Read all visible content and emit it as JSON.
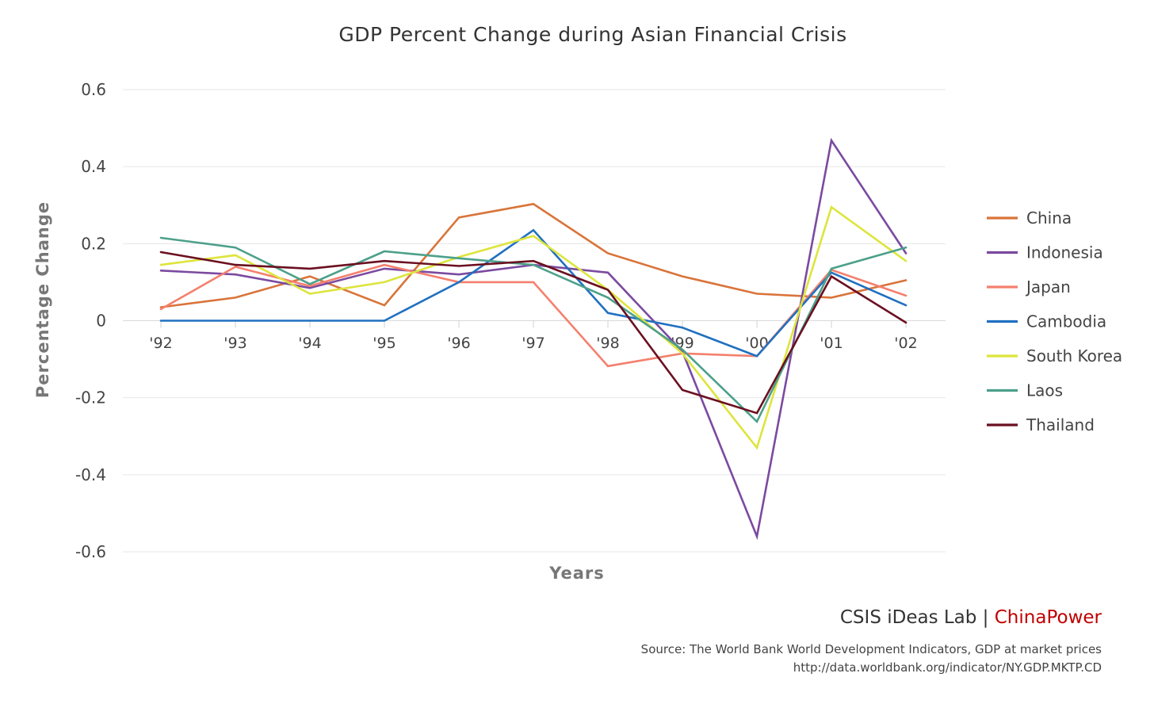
{
  "chart_data": {
    "type": "line",
    "title": "GDP Percent Change during Asian Financial Crisis",
    "xlabel": "Years",
    "ylabel": "Percentage Change",
    "ylim": [
      -0.6,
      0.6
    ],
    "yticks": [
      0.6,
      0.4,
      0.2,
      0,
      -0.2,
      -0.4,
      -0.6
    ],
    "ytick_labels": [
      "0.6",
      "0.4",
      "0.2",
      "0",
      "-0.2",
      "-0.4",
      "-0.6"
    ],
    "categories": [
      "'92",
      "'93",
      "'94",
      "'95",
      "'96",
      "'97",
      "'98",
      "'99",
      "'00",
      "'01",
      "'02"
    ],
    "grid": true,
    "legend_position": "right",
    "series": [
      {
        "name": "China",
        "color": "#d9743a",
        "values": [
          0.035,
          0.06,
          0.115,
          0.04,
          0.268,
          0.303,
          0.175,
          0.115,
          0.07,
          0.06,
          0.105
        ]
      },
      {
        "name": "Indonesia",
        "color": "#7b4aa0",
        "values": [
          0.13,
          0.12,
          0.085,
          0.135,
          0.12,
          0.145,
          0.125,
          -0.08,
          -0.56,
          0.468,
          0.175
        ]
      },
      {
        "name": "Japan",
        "color": "#f4806e",
        "values": [
          0.03,
          0.14,
          0.09,
          0.145,
          0.1,
          0.1,
          -0.118,
          -0.085,
          -0.092,
          0.132,
          0.065
        ]
      },
      {
        "name": "Cambodia",
        "color": "#2070c0",
        "values": [
          0.0,
          0.0,
          0.0,
          0.0,
          0.1,
          0.235,
          0.02,
          -0.018,
          -0.092,
          0.125,
          0.04
        ]
      },
      {
        "name": "South Korea",
        "color": "#dde53c",
        "values": [
          0.145,
          0.17,
          0.07,
          0.1,
          0.165,
          0.22,
          0.08,
          -0.085,
          -0.33,
          0.295,
          0.155
        ]
      },
      {
        "name": "Laos",
        "color": "#4ca08a",
        "values": [
          0.215,
          0.19,
          0.095,
          0.18,
          0.162,
          0.145,
          0.06,
          -0.075,
          -0.262,
          0.135,
          0.19
        ]
      },
      {
        "name": "Thailand",
        "color": "#6b1020",
        "values": [
          0.178,
          0.145,
          0.135,
          0.155,
          0.142,
          0.155,
          0.08,
          -0.18,
          -0.24,
          0.115,
          -0.005
        ]
      }
    ]
  },
  "branding": {
    "prefix": "CSIS iDeas Lab | ",
    "highlight": "ChinaPower",
    "highlight_color": "#c00000"
  },
  "source": {
    "line1": "Source:  The World Bank World Development Indicators, GDP at market prices",
    "line2": "http://data.worldbank.org/indicator/NY.GDP.MKTP.CD"
  }
}
